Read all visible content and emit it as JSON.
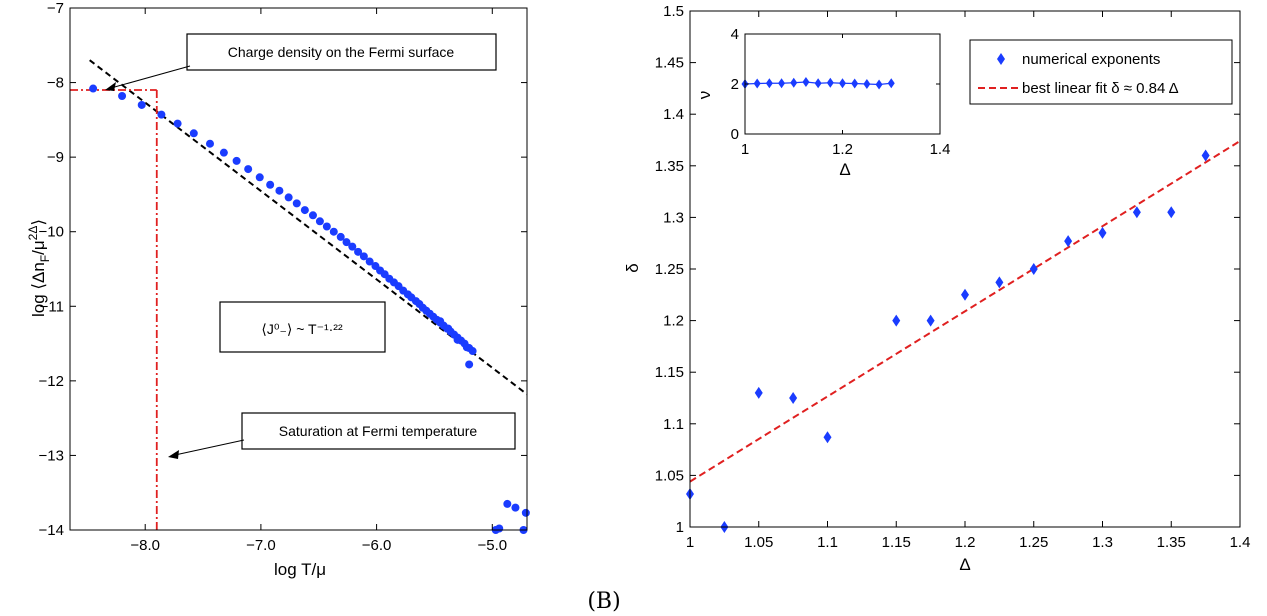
{
  "panel_label_b": "(B)",
  "chart_data": [
    {
      "type": "scatter",
      "xlabel": "log T/μ",
      "ylabel": "log ⟨Δn_F/μ^2Δ⟩",
      "xlim": [
        -8.65,
        -4.7
      ],
      "ylim": [
        -14,
        -7
      ],
      "xticks": [
        -8,
        -7,
        -6,
        -5
      ],
      "xtick_labels": [
        "−8.0",
        "−7.0",
        "−6.0",
        "−5.0"
      ],
      "yticks": [
        -14,
        -13,
        -12,
        -11,
        -10,
        -9,
        -8,
        -7
      ],
      "ytick_labels": [
        "−14",
        "−13",
        "−12",
        "−11",
        "−10",
        "−9",
        "−8",
        "−7"
      ],
      "series": [
        {
          "marker": "circle",
          "color": "#1a3cff",
          "x": [
            -8.45,
            -8.2,
            -8.03,
            -7.86,
            -7.72,
            -7.58,
            -7.44,
            -7.32,
            -7.21,
            -7.11,
            -7.01,
            -6.92,
            -6.84,
            -6.76,
            -6.69,
            -6.62,
            -6.55,
            -6.49,
            -6.43,
            -6.37,
            -6.31,
            -6.26,
            -6.21,
            -6.16,
            -6.11,
            -6.06,
            -6.01,
            -5.97,
            -5.93,
            -5.89,
            -5.85,
            -5.81,
            -5.77,
            -5.73,
            -5.7,
            -5.66,
            -5.63,
            -5.6,
            -5.57,
            -5.54,
            -5.51,
            -5.48,
            -5.45,
            -5.42,
            -5.39,
            -5.36,
            -5.33,
            -5.3,
            -5.27,
            -5.24,
            -5.2,
            -5.17,
            -5.45,
            -5.38,
            -5.3,
            -5.22,
            -5.2,
            -4.97,
            -4.94,
            -4.87,
            -4.8,
            -4.73,
            -4.71
          ],
          "y": [
            -8.08,
            -8.18,
            -8.3,
            -8.43,
            -8.55,
            -8.68,
            -8.82,
            -8.94,
            -9.05,
            -9.16,
            -9.27,
            -9.37,
            -9.45,
            -9.54,
            -9.62,
            -9.71,
            -9.78,
            -9.86,
            -9.93,
            -10.0,
            -10.07,
            -10.14,
            -10.2,
            -10.27,
            -10.33,
            -10.4,
            -10.46,
            -10.52,
            -10.57,
            -10.63,
            -10.68,
            -10.73,
            -10.79,
            -10.84,
            -10.88,
            -10.93,
            -10.97,
            -11.02,
            -11.06,
            -11.1,
            -11.14,
            -11.18,
            -11.22,
            -11.26,
            -11.3,
            -11.34,
            -11.38,
            -11.42,
            -11.46,
            -11.5,
            -11.56,
            -11.6,
            -11.2,
            -11.3,
            -11.45,
            -11.55,
            -11.78,
            -14.0,
            -13.98,
            -13.65,
            -13.7,
            -14.0,
            -13.77
          ]
        }
      ],
      "fit_line": {
        "color": "#000000",
        "x": [
          -8.48,
          -4.7
        ],
        "y": [
          -7.7,
          -12.18
        ]
      },
      "saturation_lines": {
        "color": "#e02020",
        "x": -7.9,
        "y": -8.1
      },
      "annotations": [
        {
          "text": "Charge density on the Fermi surface",
          "arrow_to": [
            -8.45,
            -8.1
          ]
        },
        {
          "text": "⟨J⁰₋⟩ ~ T⁻¹·²²"
        },
        {
          "text": "Saturation at Fermi temperature",
          "arrow_to": [
            -7.9,
            -13.0
          ]
        }
      ]
    },
    {
      "type": "scatter",
      "xlabel": "Δ",
      "ylabel": "δ",
      "xlim": [
        1,
        1.4
      ],
      "ylim": [
        1,
        1.5
      ],
      "xticks": [
        1,
        1.05,
        1.1,
        1.15,
        1.2,
        1.25,
        1.3,
        1.35,
        1.4
      ],
      "xtick_labels": [
        "1",
        "1.05",
        "1.1",
        "1.15",
        "1.2",
        "1.25",
        "1.3",
        "1.35",
        "1.4"
      ],
      "yticks": [
        1,
        1.05,
        1.1,
        1.15,
        1.2,
        1.25,
        1.3,
        1.35,
        1.4,
        1.45,
        1.5
      ],
      "ytick_labels": [
        "1",
        "1.05",
        "1.1",
        "1.15",
        "1.2",
        "1.25",
        "1.3",
        "1.35",
        "1.4",
        "1.45",
        "1.5"
      ],
      "series": [
        {
          "name": "numerical exponents",
          "marker": "diamond",
          "color": "#1a3cff",
          "x": [
            1.0,
            1.025,
            1.05,
            1.075,
            1.1,
            1.15,
            1.175,
            1.2,
            1.225,
            1.25,
            1.275,
            1.3,
            1.325,
            1.35,
            1.375
          ],
          "y": [
            1.032,
            1.0,
            1.13,
            1.125,
            1.087,
            1.2,
            1.2,
            1.225,
            1.237,
            1.25,
            1.277,
            1.285,
            1.305,
            1.305,
            1.36
          ]
        },
        {
          "name": "best linear fit δ ≈ 0.84 Δ",
          "type": "line",
          "dashed": true,
          "color": "#e02020",
          "x": [
            1.0,
            1.4
          ],
          "y": [
            1.044,
            1.374
          ]
        }
      ],
      "legend": "top-right",
      "inset": {
        "type": "scatter",
        "xlabel": "Δ",
        "ylabel": "ν",
        "xlim": [
          1,
          1.4
        ],
        "ylim": [
          0,
          4
        ],
        "xticks": [
          1,
          1.2,
          1.4
        ],
        "xtick_labels": [
          "1",
          "1.2",
          "1.4"
        ],
        "yticks": [
          0,
          2,
          4
        ],
        "ytick_labels": [
          "0",
          "2",
          "4"
        ],
        "series": [
          {
            "marker": "diamond",
            "color": "#1a3cff",
            "x": [
              1.0,
              1.025,
              1.05,
              1.075,
              1.1,
              1.125,
              1.15,
              1.175,
              1.2,
              1.225,
              1.25,
              1.275,
              1.3
            ],
            "y": [
              2.0,
              2.02,
              2.03,
              2.03,
              2.05,
              2.08,
              2.03,
              2.05,
              2.03,
              2.02,
              2.0,
              1.98,
              2.03
            ]
          }
        ]
      }
    }
  ]
}
